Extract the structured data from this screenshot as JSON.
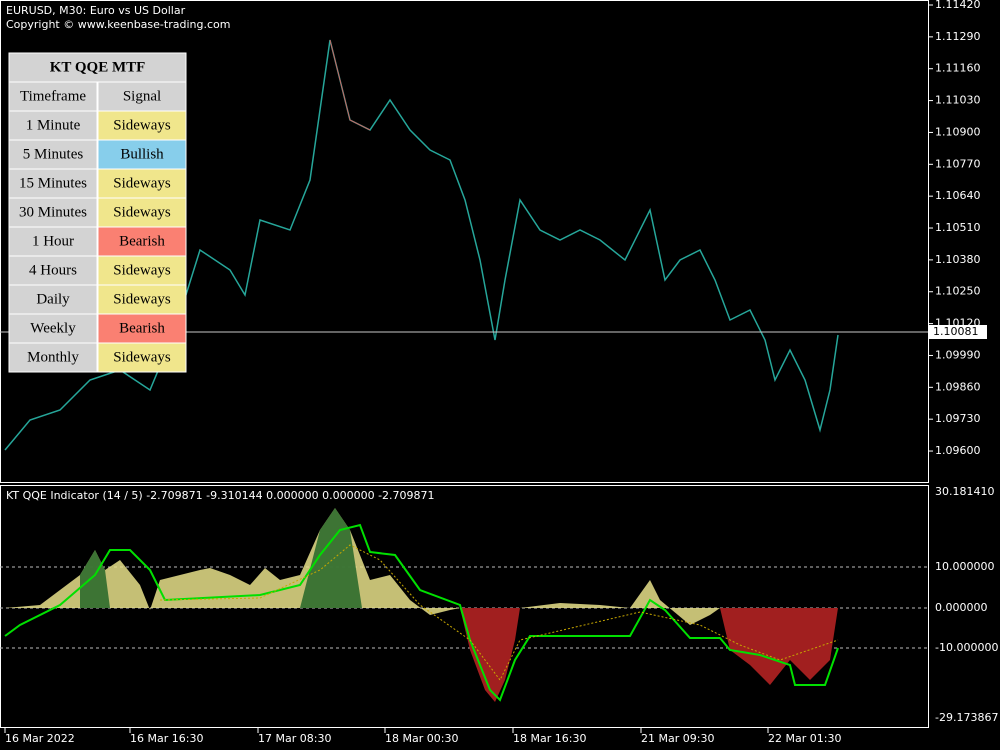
{
  "header": {
    "symbol": "EURUSD, M30:  Euro vs US Dollar",
    "copyright": "Copyright © www.keenbase-trading.com"
  },
  "table": {
    "title": "KT QQE MTF",
    "columns": [
      "Timeframe",
      "Signal"
    ],
    "rows": [
      [
        "1 Minute",
        "Sideways"
      ],
      [
        "5 Minutes",
        "Bullish"
      ],
      [
        "15 Minutes",
        "Sideways"
      ],
      [
        "30 Minutes",
        "Sideways"
      ],
      [
        "1 Hour",
        "Bearish"
      ],
      [
        "4 Hours",
        "Sideways"
      ],
      [
        "Daily",
        "Sideways"
      ],
      [
        "Weekly",
        "Bearish"
      ],
      [
        "Monthly",
        "Sideways"
      ]
    ]
  },
  "price_axis": {
    "labels": [
      "1.11420",
      "1.11290",
      "1.11160",
      "1.11030",
      "1.10900",
      "1.10770",
      "1.10640",
      "1.10510",
      "1.10380",
      "1.10250",
      "1.10120",
      "1.09990",
      "1.09860",
      "1.09730",
      "1.09600"
    ],
    "current": "1.10081"
  },
  "indicator": {
    "label": "KT QQE Indicator (14 / 5) -2.709871 -9.310144 0.000000 0.000000 -2.709871",
    "axis_labels": [
      "30.181410",
      "10.000000",
      "0.000000",
      "-10.000000",
      "-29.173867"
    ]
  },
  "time_axis": {
    "labels": [
      "16 Mar 2022",
      "16 Mar 16:30",
      "17 Mar 08:30",
      "18 Mar 00:30",
      "18 Mar 16:30",
      "21 Mar 09:30",
      "22 Mar 01:30"
    ]
  }
}
